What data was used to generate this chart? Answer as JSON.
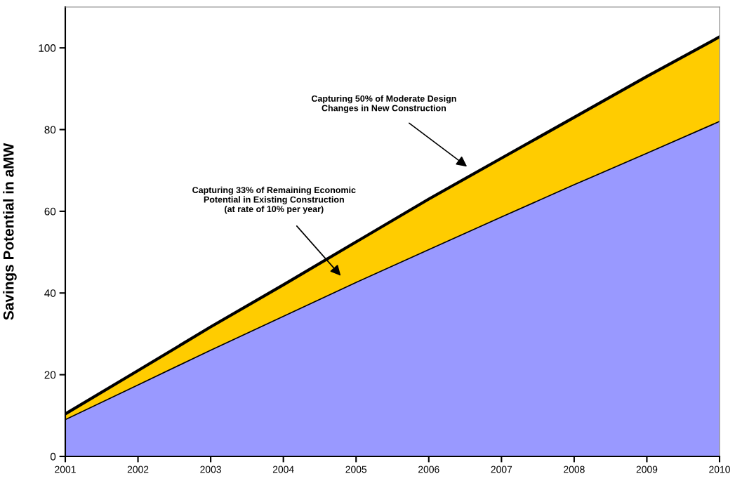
{
  "chart_data": {
    "type": "area",
    "stacked": true,
    "ylabel": "Savings Potential in aMW",
    "x": [
      2001,
      2002,
      2003,
      2004,
      2005,
      2006,
      2007,
      2008,
      2009,
      2010
    ],
    "series": [
      {
        "color": "#9999ff",
        "values": [
          9.0,
          17.5,
          26.0,
          34.3,
          42.6,
          50.6,
          58.6,
          66.5,
          74.2,
          82.0
        ]
      },
      {
        "color": "#ffcc00",
        "values": [
          1.4,
          3.5,
          5.7,
          7.7,
          9.9,
          12.4,
          14.4,
          16.5,
          18.8,
          20.7
        ]
      }
    ],
    "xlim": [
      2001,
      2010
    ],
    "xticks": [
      2001,
      2002,
      2003,
      2004,
      2005,
      2006,
      2007,
      2008,
      2009,
      2010
    ],
    "ylim": [
      0,
      110
    ],
    "yticks": [
      0,
      20,
      40,
      60,
      80,
      100
    ],
    "grid": false,
    "legend": false,
    "annotations": [
      "Capturing 50% of Moderate Design\nChanges in New Construction",
      "Capturing 33% of Remaining Economic\nPotential in Existing Construction\n(at rate of 10% per year)"
    ]
  }
}
